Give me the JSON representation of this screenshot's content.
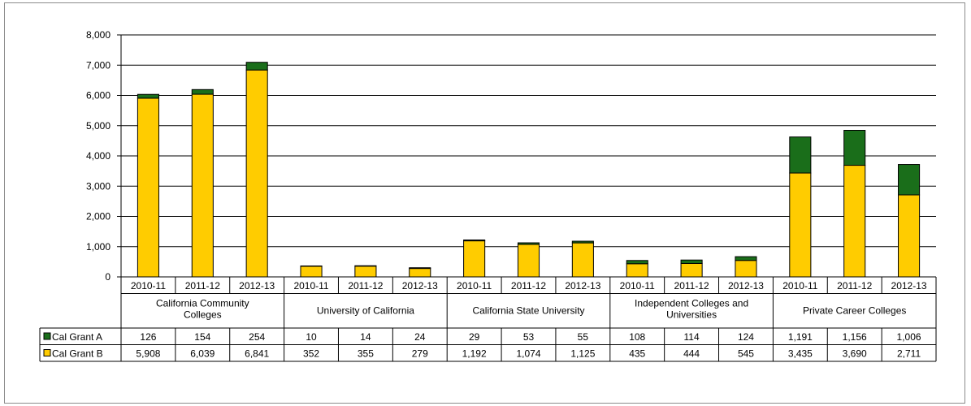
{
  "chart_data": {
    "type": "bar",
    "stacked": true,
    "ylim": [
      0,
      8000
    ],
    "yticks": [
      "0",
      "1,000",
      "2,000",
      "3,000",
      "4,000",
      "5,000",
      "6,000",
      "7,000",
      "8,000"
    ],
    "ytick_values": [
      0,
      1000,
      2000,
      3000,
      4000,
      5000,
      6000,
      7000,
      8000
    ],
    "grid": true,
    "legend": "data-table",
    "groups": [
      {
        "name": "California Community Colleges",
        "name_lines": [
          "California Community",
          "Colleges"
        ]
      },
      {
        "name": "University of California",
        "name_lines": [
          "University of California"
        ]
      },
      {
        "name": "California State University",
        "name_lines": [
          "California State University"
        ]
      },
      {
        "name": "Independent Colleges and Universities",
        "name_lines": [
          "Independent Colleges and",
          "Universities"
        ]
      },
      {
        "name": "Private Career Colleges",
        "name_lines": [
          "Private Career Colleges"
        ]
      }
    ],
    "categories": [
      "2010-11",
      "2011-12",
      "2012-13",
      "2010-11",
      "2011-12",
      "2012-13",
      "2010-11",
      "2011-12",
      "2012-13",
      "2010-11",
      "2011-12",
      "2012-13",
      "2010-11",
      "2011-12",
      "2012-13"
    ],
    "series": [
      {
        "name": "Cal Grant A",
        "color": "#1a6e1a",
        "values": [
          126,
          154,
          254,
          10,
          14,
          24,
          29,
          53,
          55,
          108,
          114,
          124,
          1191,
          1156,
          1006
        ],
        "labels": [
          "126",
          "154",
          "254",
          "10",
          "14",
          "24",
          "29",
          "53",
          "55",
          "108",
          "114",
          "124",
          "1,191",
          "1,156",
          "1,006"
        ]
      },
      {
        "name": "Cal Grant B",
        "color": "#ffcc00",
        "values": [
          5908,
          6039,
          6841,
          352,
          355,
          279,
          1192,
          1074,
          1125,
          435,
          444,
          545,
          3435,
          3690,
          2711
        ],
        "labels": [
          "5,908",
          "6,039",
          "6,841",
          "352",
          "355",
          "279",
          "1,192",
          "1,074",
          "1,125",
          "435",
          "444",
          "545",
          "3,435",
          "3,690",
          "2,711"
        ]
      }
    ]
  }
}
